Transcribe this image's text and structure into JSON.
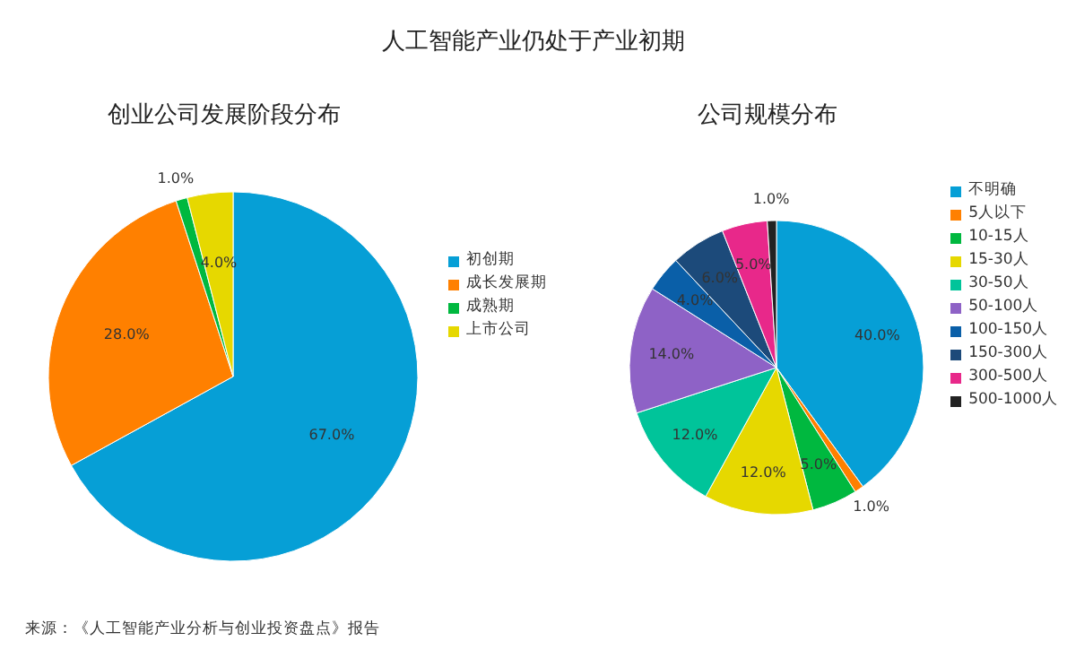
{
  "chart_data": [
    {
      "type": "pie",
      "title": "创业公司发展阶段分布",
      "annotations": [
        "人工智能产业仍处于产业初期",
        "来源：《人工智能产业分析与创业投资盘点》报告"
      ],
      "categories": [
        "初创期",
        "成长发展期",
        "成熟期",
        "上市公司"
      ],
      "values": [
        67,
        28,
        1,
        4
      ],
      "colors": [
        "#069fd6",
        "#ff8000",
        "#00b83f",
        "#e6d800"
      ],
      "value_labels": [
        "67.0%",
        "28.0%",
        "1.0%",
        "4.0%"
      ],
      "legend": "right"
    },
    {
      "type": "pie",
      "title": "公司规模分布",
      "categories": [
        "不明确",
        "5人以下",
        "10-15人",
        "15-30人",
        "30-50人",
        "50-100人",
        "100-150人",
        "150-300人",
        "300-500人",
        "500-1000人"
      ],
      "values": [
        40,
        1,
        5,
        12,
        12,
        14,
        4,
        6,
        5,
        1
      ],
      "colors": [
        "#069fd6",
        "#ff8000",
        "#00b83f",
        "#e6d800",
        "#00c49a",
        "#8e62c6",
        "#0a5fa8",
        "#1c4a7a",
        "#e8288a",
        "#222222"
      ],
      "value_labels": [
        "40.0%",
        "1.0%",
        "5.0%",
        "12.0%",
        "12.0%",
        "14.0%",
        "4.0%",
        "6.0%",
        "5.0%",
        "1.0%"
      ],
      "legend": "right"
    }
  ]
}
